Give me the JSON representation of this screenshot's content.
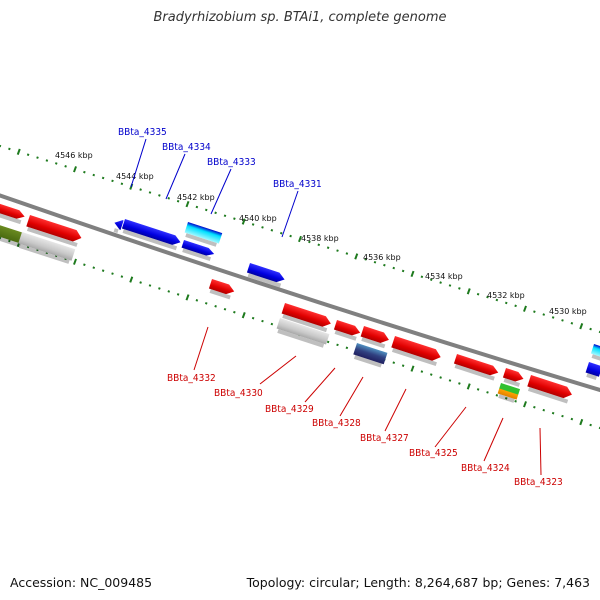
{
  "title": "Bradyrhizobium sp. BTAi1, complete genome",
  "footer": {
    "accession": "Accession: NC_009485",
    "topology": "Topology: circular; Length: 8,264,687 bp; Genes: 7,463"
  },
  "colors": {
    "backbone": "#808080",
    "tick": "#1e7a1e",
    "upper_label": "#0000cc",
    "lower_label": "#cc0000"
  },
  "kbp_labels": [
    "4546 kbp",
    "4544 kbp",
    "4542 kbp",
    "4540 kbp",
    "4538 kbp",
    "4536 kbp",
    "4534 kbp",
    "4532 kbp",
    "4530 kbp"
  ],
  "upper_genes": [
    "BBta_4335",
    "BBta_4334",
    "BBta_4333",
    "BBta_4331"
  ],
  "lower_genes": [
    "BBta_4332",
    "BBta_4330",
    "BBta_4329",
    "BBta_4328",
    "BBta_4327",
    "BBta_4325",
    "BBta_4324",
    "BBta_4323"
  ]
}
